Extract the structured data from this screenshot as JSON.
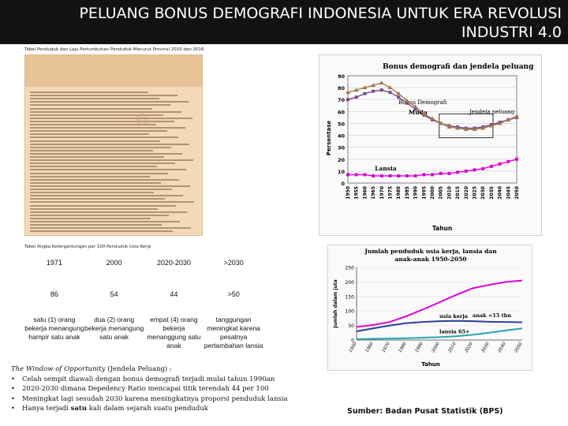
{
  "title": {
    "line1": "PELUANG BONUS DEMOGRAFI INDONESIA UNTUK ERA REVOLUSI",
    "line2": "INDUSTRI 4.0"
  },
  "population_table_caption": "Tabel Penduduk dan Laju Pertumbuhan Penduduk Menurut Provinsi 2010 dan 2016",
  "dependency_table": {
    "caption": "Tabel Angka Ketergantungan per 100 Penduduk Usia Kerja",
    "headers": [
      "1971",
      "2000",
      "2020-2030",
      ">2030"
    ],
    "values": [
      "86",
      "54",
      "44",
      ">50"
    ],
    "descriptions": [
      "satu (1) orang bekerja menangung hampir satu anak",
      "dua (2) orang bekerja menangung satu anak",
      "empat (4) orang bekerja menanggung satu anak",
      "tanggungan meningkat karena pesatnya pertambahan lansia"
    ]
  },
  "notes": {
    "heading_italic": "The Window of Opportunity",
    "heading_rest": " (Jendela Peluang) :",
    "bullets": [
      {
        "text": "Celah sempit diawali dengan bonus demografi terjadi mulai tahun 1990an"
      },
      {
        "text": "2020-2030 dimana Depedency Ratio mencapai titik terendah 44 per 100"
      },
      {
        "text": "Meningkat lagi sesudah 2030 karena meningkatnya proporsi penduduk lansia"
      },
      {
        "pre": "Hanya terjadi ",
        "bold": "satu",
        "post": " kali dalam sejarah suatu penduduk"
      }
    ]
  },
  "source": "Sumber: Badan Pusat Statistik (BPS)",
  "chart_data": [
    {
      "type": "line",
      "title": "Bonus demografi dan jendela peluang",
      "xlabel": "Tahun",
      "ylabel": "Persentase",
      "x": [
        "1950",
        "1955",
        "1960",
        "1965",
        "1970",
        "1975",
        "1980",
        "1985",
        "1990",
        "1995",
        "2000",
        "2005",
        "2010",
        "2015",
        "2020",
        "2025",
        "2030",
        "2035",
        "2040",
        "2045",
        "2050"
      ],
      "ylim": [
        0,
        90
      ],
      "yticks": [
        0,
        10,
        20,
        30,
        40,
        50,
        60,
        70,
        80,
        90
      ],
      "annotations": [
        "Bonus Demografi",
        "Jendela peluang"
      ],
      "series": [
        {
          "name": "Muda",
          "color": "#7b4a8c",
          "values": [
            70,
            72,
            75,
            77,
            78,
            76,
            72,
            67,
            62,
            57,
            53,
            50,
            48,
            47,
            46,
            46,
            47,
            49,
            51,
            53,
            55
          ]
        },
        {
          "name": "",
          "color": "#a07a52",
          "values": [
            76,
            78,
            80,
            82,
            84,
            80,
            75,
            69,
            64,
            58,
            54,
            50,
            47,
            46,
            45,
            45,
            46,
            48,
            50,
            53,
            56
          ]
        },
        {
          "name": "Lansia",
          "color": "#e000d8",
          "values": [
            7,
            7,
            7,
            6,
            6,
            6,
            6,
            6,
            6,
            7,
            7,
            8,
            8,
            9,
            10,
            11,
            12,
            14,
            16,
            18,
            20
          ]
        }
      ]
    },
    {
      "type": "line",
      "title": "Jumlah penduduk usia kerja, lansia dan anak-anak 1950-2050",
      "xlabel": "Tahun",
      "ylabel": "Jumlah dalam juta",
      "x": [
        "1950",
        "1960",
        "1970",
        "1980",
        "1990",
        "2000",
        "2010",
        "2020",
        "2030",
        "2040",
        "2050"
      ],
      "ylim": [
        0,
        250
      ],
      "yticks": [
        0,
        50,
        100,
        150,
        200,
        250
      ],
      "series": [
        {
          "name": "usia kerja",
          "color": "#e000d8",
          "values": [
            45,
            52,
            62,
            82,
            105,
            130,
            155,
            178,
            190,
            200,
            205
          ]
        },
        {
          "name": "anak <15 thn",
          "color": "#2a3f9c",
          "values": [
            30,
            40,
            50,
            58,
            62,
            65,
            66,
            65,
            63,
            62,
            61
          ]
        },
        {
          "name": "lansia 65+",
          "color": "#2aa4b0",
          "values": [
            3,
            4,
            5,
            6,
            8,
            10,
            13,
            18,
            25,
            33,
            40
          ]
        }
      ]
    }
  ]
}
